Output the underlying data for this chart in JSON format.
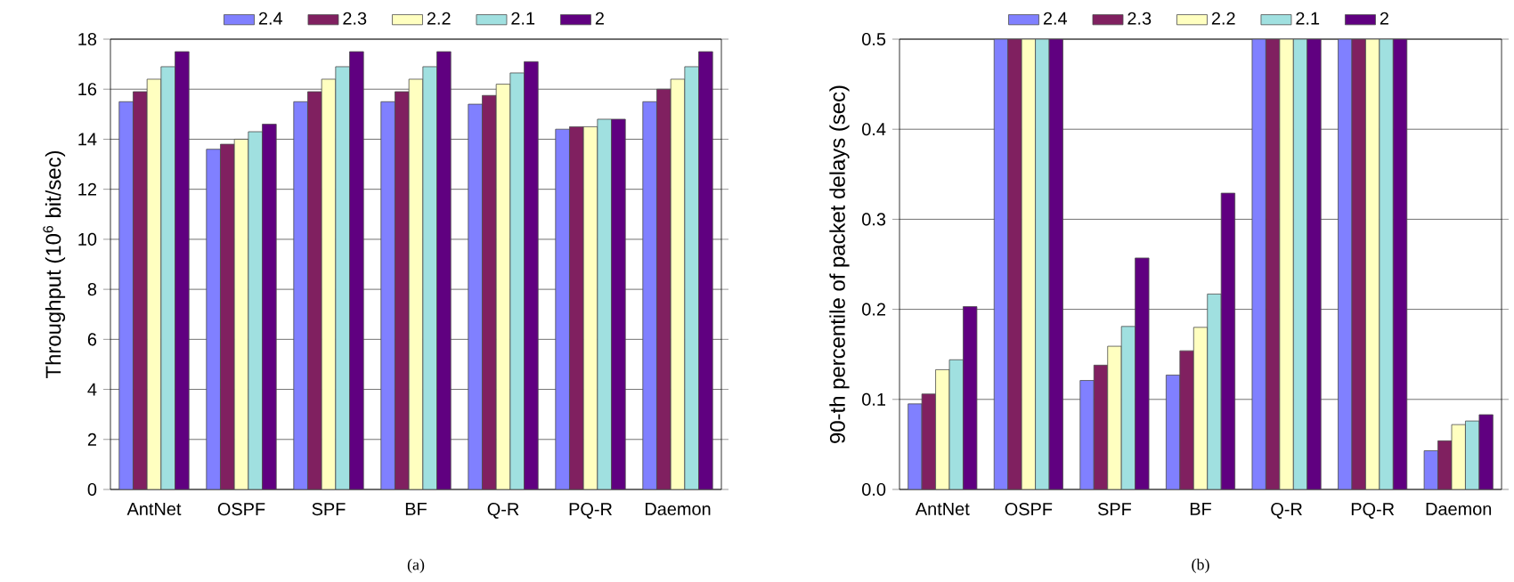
{
  "chart_data": [
    {
      "type": "bar",
      "categories": [
        "AntNet",
        "OSPF",
        "SPF",
        "BF",
        "Q-R",
        "PQ-R",
        "Daemon"
      ],
      "ylabel": "Throughput (10$^{6}$ bit/sec)",
      "ylim": [
        0,
        18
      ],
      "yticks": [
        0,
        2,
        4,
        6,
        8,
        10,
        12,
        14,
        16,
        18
      ],
      "grid": "y",
      "legend": "top",
      "annotations": [
        "(a)"
      ],
      "series": [
        {
          "name": "2.4",
          "color": "#8080ff",
          "values": [
            15.5,
            13.6,
            15.5,
            15.5,
            15.4,
            14.4,
            15.5
          ]
        },
        {
          "name": "2.3",
          "color": "#802060",
          "values": [
            15.9,
            13.8,
            15.9,
            15.9,
            15.75,
            14.5,
            16.0
          ]
        },
        {
          "name": "2.2",
          "color": "#ffffc0",
          "values": [
            16.4,
            14.0,
            16.4,
            16.4,
            16.2,
            14.5,
            16.4
          ]
        },
        {
          "name": "2.1",
          "color": "#a0e0e0",
          "values": [
            16.9,
            14.3,
            16.9,
            16.9,
            16.65,
            14.8,
            16.9
          ]
        },
        {
          "name": "2",
          "color": "#600080",
          "values": [
            17.5,
            14.6,
            17.5,
            17.5,
            17.1,
            14.8,
            17.5
          ]
        }
      ]
    },
    {
      "type": "bar",
      "categories": [
        "AntNet",
        "OSPF",
        "SPF",
        "BF",
        "Q-R",
        "PQ-R",
        "Daemon"
      ],
      "ylabel": "90-th percentile of packet delays (sec)",
      "ylim": [
        0,
        0.5
      ],
      "yticks": [
        {
          "value": 0,
          "label": "0.0"
        },
        0.1,
        0.2,
        0.3,
        0.4,
        0.5
      ],
      "grid": "y",
      "legend": "top",
      "annotations": [
        "(b)"
      ],
      "series": [
        {
          "name": "2.4",
          "color": "#8080ff",
          "values": [
            0.095,
            0.5,
            0.121,
            0.127,
            0.5,
            0.5,
            0.043
          ]
        },
        {
          "name": "2.3",
          "color": "#802060",
          "values": [
            0.106,
            0.5,
            0.138,
            0.154,
            0.5,
            0.5,
            0.054
          ]
        },
        {
          "name": "2.2",
          "color": "#ffffc0",
          "values": [
            0.133,
            0.5,
            0.159,
            0.18,
            0.5,
            0.5,
            0.072
          ]
        },
        {
          "name": "2.1",
          "color": "#a0e0e0",
          "values": [
            0.144,
            0.5,
            0.181,
            0.217,
            0.5,
            0.5,
            0.076
          ]
        },
        {
          "name": "2",
          "color": "#600080",
          "values": [
            0.203,
            0.5,
            0.257,
            0.329,
            0.5,
            0.5,
            0.083
          ]
        }
      ]
    }
  ]
}
